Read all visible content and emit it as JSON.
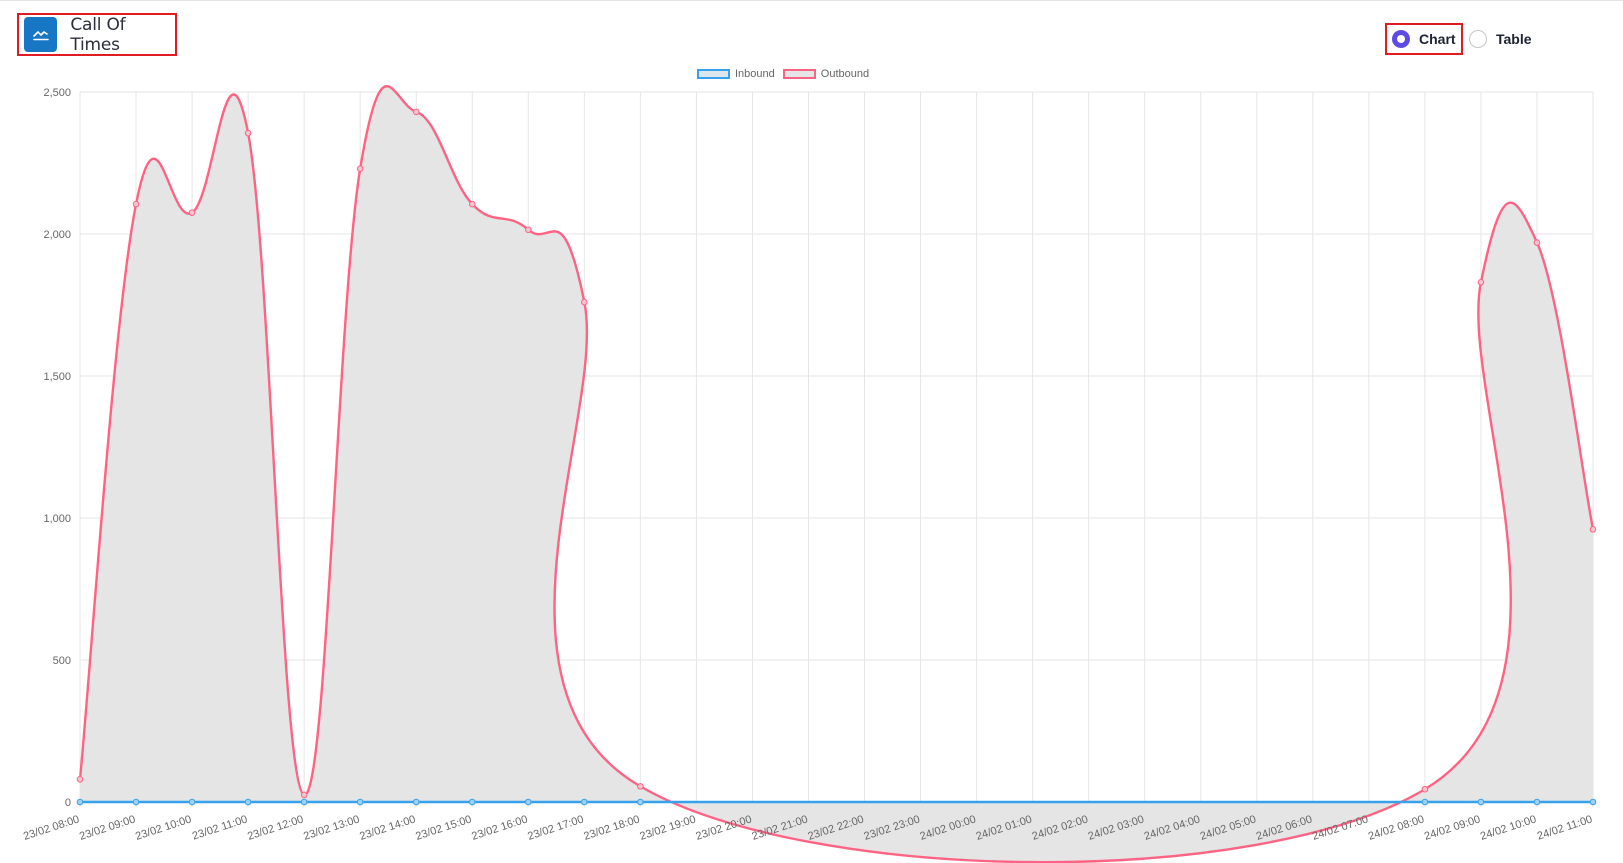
{
  "header": {
    "title": "Call Of Times",
    "title_icon": "line-chart-icon"
  },
  "view_toggle": {
    "options": [
      {
        "label": "Chart",
        "selected": true
      },
      {
        "label": "Table",
        "selected": false
      }
    ]
  },
  "colors": {
    "accent": "#1777c5",
    "highlight_border": "#e11b22",
    "radio_selected": "#5b4ce8",
    "inbound": "#36a2eb",
    "outbound": "#ff6384",
    "area_fill": "#e5e5e5"
  },
  "chart_data": {
    "type": "line",
    "title": "",
    "xlabel": "",
    "ylabel": "",
    "ylim": [
      0,
      2500
    ],
    "y_ticks": [
      0,
      500,
      1000,
      1500,
      2000,
      2500
    ],
    "y_tick_labels": [
      "0",
      "500",
      "1,000",
      "1,500",
      "2,000",
      "2,500"
    ],
    "grid": true,
    "legend_position": "top-center",
    "categories": [
      "23/02 08:00",
      "23/02 09:00",
      "23/02 10:00",
      "23/02 11:00",
      "23/02 12:00",
      "23/02 13:00",
      "23/02 14:00",
      "23/02 15:00",
      "23/02 16:00",
      "23/02 17:00",
      "23/02 18:00",
      "23/02 19:00",
      "23/02 20:00",
      "23/02 21:00",
      "23/02 22:00",
      "23/02 23:00",
      "24/02 00:00",
      "24/02 01:00",
      "24/02 02:00",
      "24/02 03:00",
      "24/02 04:00",
      "24/02 05:00",
      "24/02 06:00",
      "24/02 07:00",
      "24/02 08:00",
      "24/02 09:00",
      "24/02 10:00",
      "24/02 11:00"
    ],
    "series": [
      {
        "name": "Inbound",
        "points": [
          [
            0,
            0
          ],
          [
            1,
            0
          ],
          [
            2,
            0
          ],
          [
            3,
            0
          ],
          [
            4,
            0
          ],
          [
            5,
            0
          ],
          [
            6,
            0
          ],
          [
            7,
            0
          ],
          [
            8,
            0
          ],
          [
            9,
            0
          ],
          [
            10,
            0
          ],
          [
            24,
            0
          ],
          [
            25,
            0
          ],
          [
            26,
            0
          ],
          [
            27,
            0
          ]
        ]
      },
      {
        "name": "Outbound",
        "points": [
          [
            0,
            80
          ],
          [
            1,
            2105
          ],
          [
            2,
            2075
          ],
          [
            3,
            2355
          ],
          [
            4,
            25
          ],
          [
            5,
            2230
          ],
          [
            6,
            2430
          ],
          [
            7,
            2105
          ],
          [
            8,
            2015
          ],
          [
            9,
            1760
          ],
          [
            10,
            55
          ],
          [
            24,
            45
          ],
          [
            25,
            1830
          ],
          [
            26,
            1970
          ],
          [
            27,
            960
          ]
        ]
      }
    ]
  }
}
